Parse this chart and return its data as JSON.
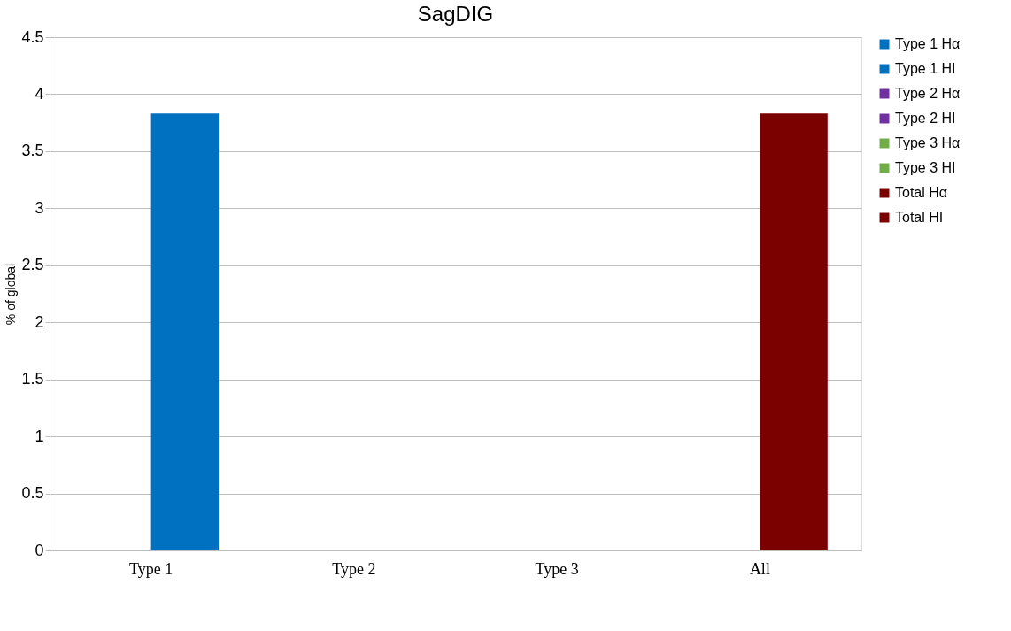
{
  "chart_data": {
    "type": "bar",
    "title": "SagDIG",
    "ylabel": "% of global",
    "categories": [
      "Type 1",
      "Type 2",
      "Type 3",
      "All"
    ],
    "series": [
      {
        "name": "Type 1 Hα",
        "color": "#0070c0",
        "values": [
          null,
          null,
          null,
          null
        ]
      },
      {
        "name": "Type 1 HI",
        "color": "#0070c0",
        "values": [
          3.83,
          null,
          null,
          null
        ]
      },
      {
        "name": "Type 2 Hα",
        "color": "#7030a0",
        "values": [
          null,
          null,
          null,
          null
        ]
      },
      {
        "name": "Type 2 HI",
        "color": "#7030a0",
        "values": [
          null,
          null,
          null,
          null
        ]
      },
      {
        "name": "Type 3 Hα",
        "color": "#70ad47",
        "values": [
          null,
          null,
          null,
          null
        ]
      },
      {
        "name": "Type 3 HI",
        "color": "#70ad47",
        "values": [
          null,
          null,
          null,
          null
        ]
      },
      {
        "name": "Total Hα",
        "color": "#7b0000",
        "values": [
          null,
          null,
          null,
          null
        ]
      },
      {
        "name": "Total HI",
        "color": "#7b0000",
        "values": [
          null,
          null,
          null,
          3.83
        ]
      }
    ],
    "ylim": [
      0,
      4.5
    ],
    "yticks": [
      0,
      0.5,
      1,
      1.5,
      2,
      2.5,
      3,
      3.5,
      4,
      4.5
    ],
    "grid": "y",
    "legend": "right"
  }
}
